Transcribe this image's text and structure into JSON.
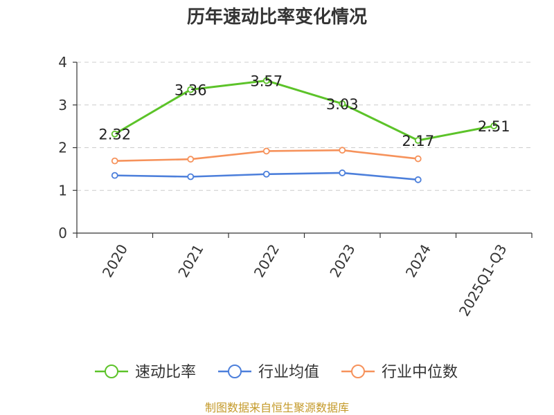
{
  "chart_data": {
    "type": "line",
    "title": "历年速动比率变化情况",
    "categories": [
      "2020",
      "2021",
      "2022",
      "2023",
      "2024",
      "2025Q1-Q3"
    ],
    "ylim": [
      0,
      4
    ],
    "yticks": [
      0,
      1,
      2,
      3,
      4
    ],
    "grid": true,
    "legend_position": "bottom",
    "series": [
      {
        "name": "速动比率",
        "color": "#5cc329",
        "values": [
          2.32,
          3.36,
          3.57,
          3.03,
          2.17,
          2.51
        ],
        "labels": [
          "2.32",
          "3.36",
          "3.57",
          "3.03",
          "2.17",
          "2.51"
        ]
      },
      {
        "name": "行业均值",
        "color": "#4c7fdb",
        "values": [
          1.35,
          1.32,
          1.38,
          1.41,
          1.25,
          null
        ]
      },
      {
        "name": "行业中位数",
        "color": "#f6925b",
        "values": [
          1.69,
          1.73,
          1.92,
          1.94,
          1.74,
          null
        ]
      }
    ]
  },
  "source_note": "制图数据来自恒生聚源数据库"
}
